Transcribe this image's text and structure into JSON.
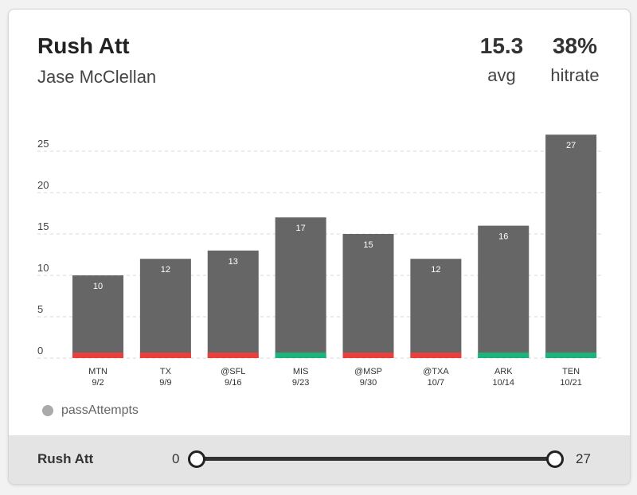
{
  "header": {
    "title": "Rush Att",
    "player": "Jase McClellan"
  },
  "stats": [
    {
      "value": "15.3",
      "label": "avg"
    },
    {
      "value": "38%",
      "label": "hitrate"
    }
  ],
  "legend": {
    "label": "passAttempts"
  },
  "footer": {
    "label": "Rush Att",
    "range_min": "0",
    "range_max": "27"
  },
  "colors": {
    "bar": "#666666",
    "miss": "#e8413d",
    "hit": "#1fb37c",
    "grid": "#d8d8d8"
  },
  "chart_data": {
    "type": "bar",
    "title": "Rush Att",
    "categories": [
      "MTN",
      "TX",
      "@SFL",
      "MIS",
      "@MSP",
      "@TXA",
      "ARK",
      "TEN"
    ],
    "dates": [
      "9/2",
      "9/9",
      "9/16",
      "9/23",
      "9/30",
      "10/7",
      "10/14",
      "10/21"
    ],
    "values": [
      10,
      12,
      13,
      17,
      15,
      12,
      16,
      27
    ],
    "value_labels": [
      "10",
      "12",
      "13",
      "17",
      "15",
      "12",
      "16",
      "27"
    ],
    "outcome": [
      "miss",
      "miss",
      "miss",
      "hit",
      "miss",
      "miss",
      "hit",
      "hit"
    ],
    "ylim": [
      0,
      25
    ],
    "yticks": [
      0,
      5,
      10,
      15,
      20,
      25
    ],
    "ytick_labels": [
      "0",
      "5",
      "10",
      "15",
      "20",
      "25"
    ],
    "grid": true,
    "xlabel": "",
    "ylabel": ""
  }
}
